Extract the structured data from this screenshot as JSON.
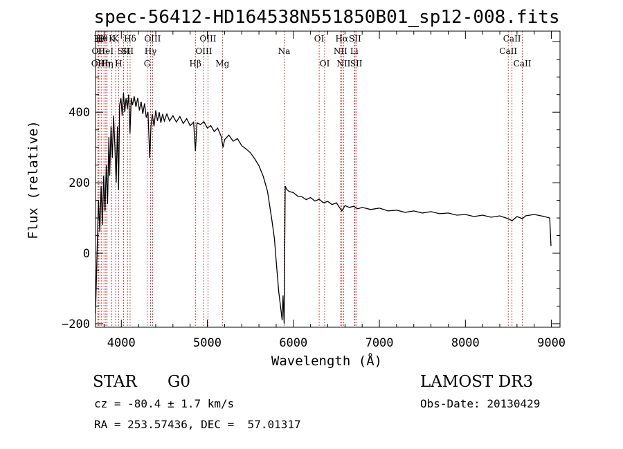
{
  "chart_data": {
    "type": "line",
    "title": "spec-56412-HD164538N551850B01_sp12-008.fits",
    "xlabel": "Wavelength (Å)",
    "ylabel": "Flux (relative)",
    "xlim": [
      3700,
      9100
    ],
    "ylim": [
      -210,
      630
    ],
    "xticks": [
      4000,
      5000,
      6000,
      7000,
      8000,
      9000
    ],
    "xtick_labels": [
      "4000",
      "5000",
      "6000",
      "7000",
      "8000",
      "9000"
    ],
    "yticks": [
      -200,
      0,
      200,
      400
    ],
    "ytick_labels": [
      "−200",
      "0",
      "200",
      "400"
    ],
    "series": [
      {
        "name": "spectrum",
        "points": [
          [
            3700,
            -170
          ],
          [
            3720,
            20
          ],
          [
            3735,
            150
          ],
          [
            3750,
            60
          ],
          [
            3765,
            190
          ],
          [
            3780,
            80
          ],
          [
            3795,
            220
          ],
          [
            3810,
            120
          ],
          [
            3825,
            250
          ],
          [
            3840,
            140
          ],
          [
            3855,
            330
          ],
          [
            3865,
            220
          ],
          [
            3880,
            360
          ],
          [
            3895,
            270
          ],
          [
            3910,
            390
          ],
          [
            3925,
            300
          ],
          [
            3940,
            200
          ],
          [
            3955,
            360
          ],
          [
            3968,
            180
          ],
          [
            3980,
            420
          ],
          [
            3995,
            440
          ],
          [
            4010,
            390
          ],
          [
            4025,
            455
          ],
          [
            4040,
            400
          ],
          [
            4055,
            440
          ],
          [
            4070,
            410
          ],
          [
            4085,
            450
          ],
          [
            4101,
            340
          ],
          [
            4115,
            440
          ],
          [
            4130,
            420
          ],
          [
            4150,
            445
          ],
          [
            4170,
            415
          ],
          [
            4190,
            440
          ],
          [
            4210,
            405
          ],
          [
            4230,
            430
          ],
          [
            4250,
            395
          ],
          [
            4270,
            425
          ],
          [
            4290,
            385
          ],
          [
            4310,
            400
          ],
          [
            4330,
            270
          ],
          [
            4345,
            360
          ],
          [
            4360,
            395
          ],
          [
            4380,
            360
          ],
          [
            4400,
            405
          ],
          [
            4420,
            375
          ],
          [
            4440,
            400
          ],
          [
            4460,
            370
          ],
          [
            4480,
            395
          ],
          [
            4500,
            375
          ],
          [
            4530,
            395
          ],
          [
            4560,
            375
          ],
          [
            4600,
            390
          ],
          [
            4640,
            372
          ],
          [
            4680,
            388
          ],
          [
            4720,
            368
          ],
          [
            4760,
            382
          ],
          [
            4800,
            362
          ],
          [
            4840,
            372
          ],
          [
            4861,
            290
          ],
          [
            4880,
            370
          ],
          [
            4920,
            365
          ],
          [
            4960,
            373
          ],
          [
            5000,
            355
          ],
          [
            5040,
            362
          ],
          [
            5080,
            345
          ],
          [
            5120,
            355
          ],
          [
            5160,
            332
          ],
          [
            5183,
            300
          ],
          [
            5200,
            322
          ],
          [
            5250,
            335
          ],
          [
            5300,
            318
          ],
          [
            5350,
            325
          ],
          [
            5400,
            305
          ],
          [
            5450,
            296
          ],
          [
            5500,
            285
          ],
          [
            5550,
            268
          ],
          [
            5600,
            248
          ],
          [
            5650,
            218
          ],
          [
            5700,
            175
          ],
          [
            5750,
            95
          ],
          [
            5780,
            40
          ],
          [
            5800,
            -20
          ],
          [
            5830,
            -110
          ],
          [
            5850,
            -150
          ],
          [
            5870,
            -190
          ],
          [
            5880,
            -120
          ],
          [
            5893,
            -200
          ],
          [
            5905,
            190
          ],
          [
            5920,
            182
          ],
          [
            5950,
            175
          ],
          [
            6000,
            172
          ],
          [
            6050,
            162
          ],
          [
            6100,
            160
          ],
          [
            6150,
            152
          ],
          [
            6200,
            158
          ],
          [
            6250,
            148
          ],
          [
            6300,
            153
          ],
          [
            6350,
            143
          ],
          [
            6400,
            147
          ],
          [
            6450,
            138
          ],
          [
            6500,
            143
          ],
          [
            6563,
            120
          ],
          [
            6600,
            135
          ],
          [
            6650,
            130
          ],
          [
            6700,
            133
          ],
          [
            6750,
            126
          ],
          [
            6800,
            130
          ],
          [
            6900,
            124
          ],
          [
            7000,
            128
          ],
          [
            7100,
            120
          ],
          [
            7200,
            122
          ],
          [
            7300,
            116
          ],
          [
            7400,
            120
          ],
          [
            7500,
            114
          ],
          [
            7600,
            118
          ],
          [
            7700,
            112
          ],
          [
            7800,
            114
          ],
          [
            7900,
            108
          ],
          [
            8000,
            110
          ],
          [
            8100,
            104
          ],
          [
            8200,
            108
          ],
          [
            8300,
            102
          ],
          [
            8400,
            106
          ],
          [
            8498,
            98
          ],
          [
            8542,
            92
          ],
          [
            8600,
            104
          ],
          [
            8662,
            98
          ],
          [
            8700,
            106
          ],
          [
            8800,
            110
          ],
          [
            8900,
            105
          ],
          [
            8980,
            100
          ],
          [
            8995,
            20
          ]
        ]
      }
    ],
    "line_markers": [
      {
        "wavelength": 3727,
        "label": "OII",
        "row": 2
      },
      {
        "wavelength": 3734,
        "label": "OII",
        "row": 1
      },
      {
        "wavelength": 3750,
        "label": "Hθ",
        "row": 0
      },
      {
        "wavelength": 3771,
        "label": "Hθ",
        "row": 0
      },
      {
        "wavelength": 3798,
        "label": "Hη",
        "row": 2
      },
      {
        "wavelength": 3820,
        "label": "HeI",
        "row": 1
      },
      {
        "wavelength": 3835,
        "label": "Hη",
        "row": 2
      },
      {
        "wavelength": 3889,
        "label": "K",
        "row": 0
      },
      {
        "wavelength": 3934,
        "label": "K",
        "row": 0
      },
      {
        "wavelength": 3968,
        "label": "H",
        "row": 2
      },
      {
        "wavelength": 4026,
        "label": "SII",
        "row": 1
      },
      {
        "wavelength": 4072,
        "label": "SII",
        "row": 1
      },
      {
        "wavelength": 4102,
        "label": "Hδ",
        "row": 0
      },
      {
        "wavelength": 4300,
        "label": "G",
        "row": 2
      },
      {
        "wavelength": 4340,
        "label": "Hγ",
        "row": 1
      },
      {
        "wavelength": 4363,
        "label": "OIII",
        "row": 0
      },
      {
        "wavelength": 4861,
        "label": "Hβ",
        "row": 2
      },
      {
        "wavelength": 4959,
        "label": "OIII",
        "row": 1
      },
      {
        "wavelength": 5007,
        "label": "OIII",
        "row": 0
      },
      {
        "wavelength": 5175,
        "label": "Mg",
        "row": 2
      },
      {
        "wavelength": 5893,
        "label": "Na",
        "row": 1
      },
      {
        "wavelength": 6300,
        "label": "OI",
        "row": 0
      },
      {
        "wavelength": 6364,
        "label": "OI",
        "row": 2
      },
      {
        "wavelength": 6548,
        "label": "NII",
        "row": 1
      },
      {
        "wavelength": 6563,
        "label": "Hα",
        "row": 0
      },
      {
        "wavelength": 6584,
        "label": "NII",
        "row": 2
      },
      {
        "wavelength": 6708,
        "label": "Li",
        "row": 1
      },
      {
        "wavelength": 6717,
        "label": "SII",
        "row": 0
      },
      {
        "wavelength": 6731,
        "label": "SII",
        "row": 2
      },
      {
        "wavelength": 8498,
        "label": "CaII",
        "row": 1
      },
      {
        "wavelength": 8542,
        "label": "CaII",
        "row": 0
      },
      {
        "wavelength": 8662,
        "label": "CaII",
        "row": 2
      }
    ],
    "grid": false
  },
  "info": {
    "class_label": "STAR",
    "subclass": "G0",
    "survey": "LAMOST DR3",
    "cz": "cz = -80.4 ± 1.7 km/s",
    "obs_date": "Obs-Date: 20130429",
    "radec": "RA = 253.57436, DEC =  57.01317"
  },
  "colors": {
    "spectrum": "#000000",
    "marker": "#b22222",
    "axis": "#000000"
  }
}
